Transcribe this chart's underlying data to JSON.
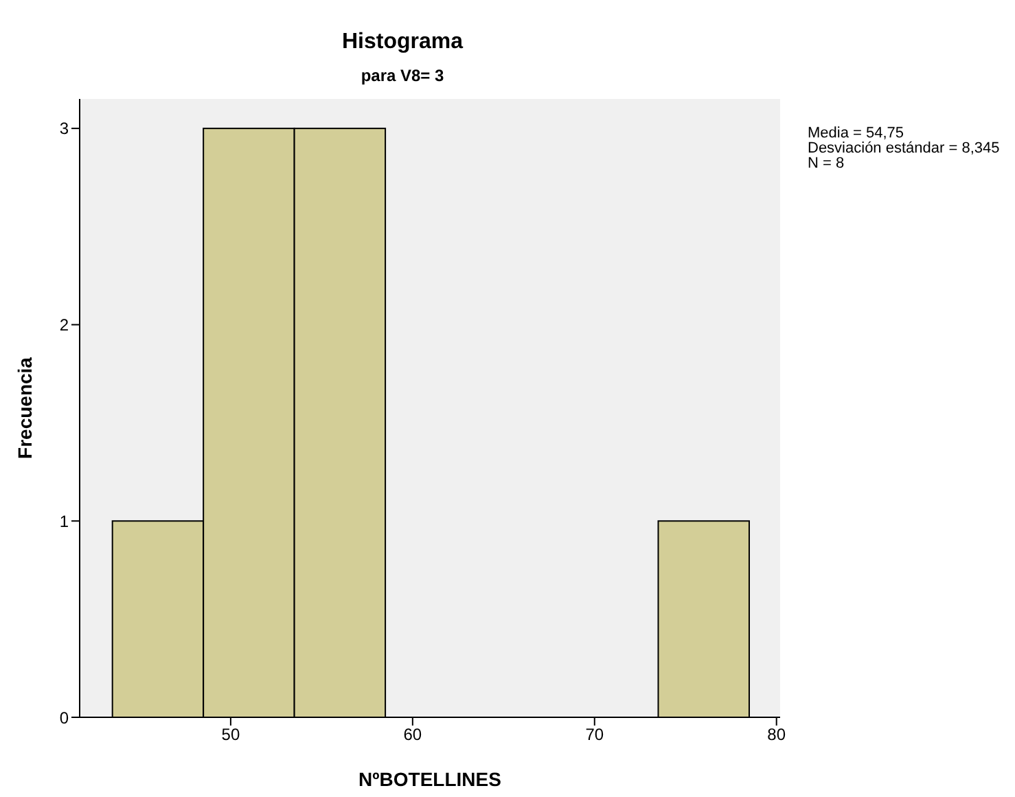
{
  "chart_data": {
    "type": "histogram",
    "title": "Histograma",
    "subtitle": "para V8= 3",
    "xlabel": "NºBOTELLINES",
    "ylabel": "Frecuencia",
    "bins": [
      43.5,
      48.5,
      53.5,
      58.5,
      63.5,
      68.5,
      73.5,
      78.5
    ],
    "values": [
      1,
      3,
      3,
      0,
      0,
      0,
      1
    ],
    "color": "#d3ce97",
    "xlim": [
      41.7,
      80.2
    ],
    "xticks": [
      50,
      60,
      70,
      80
    ],
    "ylim": [
      0,
      3.15
    ],
    "yticks": [
      0,
      1,
      2,
      3
    ],
    "annotations": [
      "Media = 54,75",
      "Desviación estándar = 8,345",
      "N = 8"
    ]
  }
}
